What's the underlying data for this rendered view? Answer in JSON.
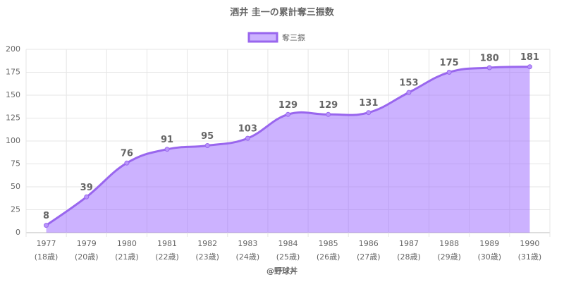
{
  "chart_data": {
    "type": "line",
    "title": "酒井 圭一の累計奪三振数",
    "categories": [
      [
        "1977",
        "(18歳)"
      ],
      [
        "1979",
        "(20歳)"
      ],
      [
        "1980",
        "(21歳)"
      ],
      [
        "1981",
        "(22歳)"
      ],
      [
        "1982",
        "(23歳)"
      ],
      [
        "1983",
        "(24歳)"
      ],
      [
        "1984",
        "(25歳)"
      ],
      [
        "1985",
        "(26歳)"
      ],
      [
        "1986",
        "(27歳)"
      ],
      [
        "1987",
        "(28歳)"
      ],
      [
        "1988",
        "(29歳)"
      ],
      [
        "1989",
        "(30歳)"
      ],
      [
        "1990",
        "(31歳)"
      ]
    ],
    "series": [
      {
        "name": "奪三振",
        "color": "#9966ee",
        "fill": "rgba(153,102,255,0.5)",
        "values": [
          8,
          39,
          76,
          91,
          95,
          103,
          129,
          129,
          131,
          153,
          175,
          180,
          181
        ]
      }
    ],
    "ylim": [
      0,
      200
    ],
    "yticks": [
      0,
      25,
      50,
      75,
      100,
      125,
      150,
      175,
      200
    ],
    "grid": true,
    "legend": "top",
    "footer": "@野球丼"
  }
}
